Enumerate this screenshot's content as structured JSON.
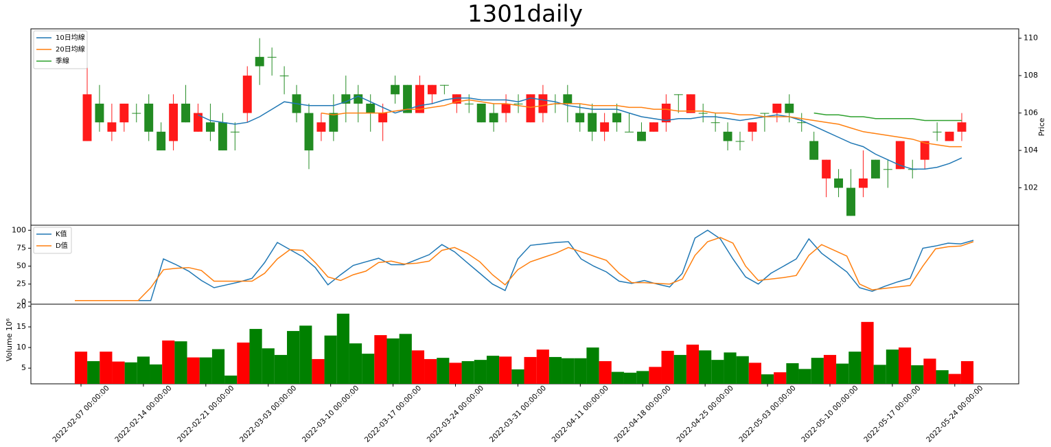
{
  "chart_data": [
    {
      "type": "candlestick",
      "title": "1301daily",
      "ylabel": "Price",
      "open": [
        104.5,
        106.5,
        105,
        105.5,
        106,
        106.5,
        105,
        104.5,
        106.5,
        105,
        105.5,
        105.5,
        105,
        106,
        109,
        109,
        108,
        107,
        106,
        105,
        106,
        107,
        107,
        106.5,
        105.5,
        107.5,
        107.5,
        106,
        107,
        107.5,
        106.5,
        106.5,
        106.5,
        106,
        106,
        106.5,
        105.5,
        106,
        106.5,
        107,
        106,
        106,
        105,
        106,
        105,
        105,
        105,
        105.5,
        107,
        106,
        106,
        105.5,
        105,
        104.5,
        105,
        106,
        106,
        106.5,
        105.5,
        104.5,
        102.5,
        102.5,
        102,
        102,
        103.5,
        103,
        103,
        103,
        103.5,
        105,
        104.5,
        105
      ],
      "high": [
        108.5,
        107.5,
        106.5,
        106.5,
        106.5,
        107,
        105.5,
        107,
        107.5,
        106.5,
        106.5,
        106,
        105.5,
        108.5,
        110,
        109.5,
        108.5,
        107.5,
        106.5,
        106,
        107,
        108,
        107.5,
        107,
        106.5,
        108,
        107.5,
        108,
        107.5,
        107.5,
        107,
        107,
        106.5,
        106.5,
        107,
        107,
        107,
        107.5,
        107,
        107.5,
        106.5,
        106.5,
        106,
        106.5,
        106,
        105.5,
        105.5,
        107,
        107,
        107,
        106.5,
        106,
        105.5,
        105,
        105.5,
        106,
        106.5,
        107,
        106,
        105,
        103.5,
        103,
        103,
        104,
        103.5,
        103.5,
        104.5,
        103.5,
        104.5,
        105.5,
        105,
        106
      ],
      "low": [
        104.5,
        105,
        104.5,
        105,
        105.5,
        104.5,
        104,
        104,
        105.5,
        105,
        104.5,
        104,
        104,
        105.5,
        107.5,
        108,
        107,
        105.5,
        103,
        104.5,
        104.5,
        105.5,
        105.5,
        105,
        104.5,
        106.5,
        106,
        106,
        106.5,
        107,
        106,
        106,
        105.5,
        105,
        105.5,
        106,
        105.5,
        105.5,
        106,
        105.5,
        105,
        104.5,
        104.5,
        105,
        105,
        104.5,
        105,
        105,
        106,
        106,
        105.5,
        105,
        104,
        104,
        104.5,
        105,
        105.5,
        105.5,
        105,
        103.5,
        101.5,
        101.5,
        100.5,
        101.5,
        102.5,
        102,
        103,
        102.5,
        103,
        104.5,
        104.5,
        104.5
      ],
      "close": [
        107,
        105.5,
        105.5,
        106.5,
        106,
        105,
        104,
        106.5,
        105.5,
        106,
        105,
        104,
        105,
        108,
        108.5,
        109,
        108,
        106,
        104,
        105.5,
        105,
        106.5,
        106.5,
        106,
        106,
        107,
        106,
        107.5,
        107.5,
        107.5,
        107,
        106.5,
        105.5,
        105.5,
        106.5,
        106.5,
        107,
        107,
        106.5,
        106.5,
        105.5,
        105,
        105.5,
        105.5,
        105,
        104.5,
        105.5,
        106.5,
        107,
        107,
        106,
        105.5,
        104.5,
        104.5,
        105.5,
        106,
        106.5,
        106,
        105.5,
        103.5,
        103.5,
        102,
        100.5,
        102.5,
        102.5,
        103,
        104.5,
        103,
        104.5,
        105,
        105,
        105.5
      ],
      "up_color": "#ff1a1a",
      "down_color": "#228b22",
      "series": [
        {
          "name": "10日均線",
          "color": "#1f77b4",
          "values": [
            null,
            null,
            null,
            null,
            null,
            null,
            null,
            null,
            null,
            105.9,
            105.6,
            105.5,
            105.4,
            105.5,
            105.8,
            106.2,
            106.6,
            106.5,
            106.4,
            106.4,
            106.4,
            106.6,
            106.9,
            106.6,
            106.3,
            106.0,
            106.2,
            106.4,
            106.5,
            106.7,
            106.8,
            106.8,
            106.7,
            106.7,
            106.7,
            106.6,
            106.8,
            106.7,
            106.6,
            106.4,
            106.3,
            106.2,
            106.2,
            106.2,
            106.0,
            105.8,
            105.7,
            105.6,
            105.7,
            105.7,
            105.8,
            105.8,
            105.7,
            105.6,
            105.7,
            105.8,
            105.9,
            105.8,
            105.6,
            105.3,
            105.0,
            104.7,
            104.4,
            104.2,
            103.8,
            103.5,
            103.2,
            103.0,
            103.0,
            103.1,
            103.3,
            103.6
          ]
        },
        {
          "name": "20日均線",
          "color": "#ff7f0e",
          "values": [
            null,
            null,
            null,
            null,
            null,
            null,
            null,
            null,
            null,
            null,
            null,
            null,
            null,
            null,
            null,
            null,
            null,
            null,
            null,
            106.0,
            105.9,
            106.0,
            106.0,
            106.0,
            106.0,
            106.1,
            106.2,
            106.2,
            106.3,
            106.4,
            106.6,
            106.7,
            106.6,
            106.5,
            106.5,
            106.4,
            106.3,
            106.4,
            106.5,
            106.5,
            106.5,
            106.4,
            106.4,
            106.4,
            106.3,
            106.3,
            106.2,
            106.2,
            106.1,
            106.1,
            106.1,
            106.0,
            106.0,
            105.9,
            105.9,
            105.8,
            105.8,
            105.8,
            105.7,
            105.6,
            105.5,
            105.4,
            105.2,
            105.0,
            104.9,
            104.8,
            104.7,
            104.6,
            104.4,
            104.3,
            104.2,
            104.2
          ]
        },
        {
          "name": "季線",
          "color": "#2ca02c",
          "values": [
            null,
            null,
            null,
            null,
            null,
            null,
            null,
            null,
            null,
            null,
            null,
            null,
            null,
            null,
            null,
            null,
            null,
            null,
            null,
            null,
            null,
            null,
            null,
            null,
            null,
            null,
            null,
            null,
            null,
            null,
            null,
            null,
            null,
            null,
            null,
            null,
            null,
            null,
            null,
            null,
            null,
            null,
            null,
            null,
            null,
            null,
            null,
            null,
            null,
            null,
            null,
            null,
            null,
            null,
            null,
            null,
            null,
            null,
            null,
            106.0,
            105.9,
            105.9,
            105.8,
            105.8,
            105.7,
            105.7,
            105.7,
            105.7,
            105.6,
            105.6,
            105.6,
            105.6
          ]
        }
      ],
      "ylim": [
        100,
        110.5
      ],
      "yticks": [
        102,
        104,
        106,
        108,
        110
      ],
      "legend": "upper left"
    },
    {
      "type": "line",
      "series": [
        {
          "name": "K值",
          "color": "#1f77b4",
          "values": [
            2,
            2,
            2,
            2,
            2,
            2,
            2,
            60,
            52,
            43,
            30,
            20,
            24,
            28,
            33,
            55,
            83,
            73,
            63,
            48,
            24,
            38,
            51,
            56,
            61,
            52,
            52,
            59,
            66,
            80,
            70,
            55,
            40,
            25,
            16,
            60,
            79,
            81,
            83,
            84,
            60,
            50,
            42,
            29,
            26,
            30,
            25,
            21,
            40,
            89,
            100,
            88,
            60,
            35,
            25,
            40,
            50,
            60,
            88,
            68,
            55,
            42,
            20,
            15,
            22,
            28,
            33,
            75,
            78,
            82,
            81,
            86
          ]
        },
        {
          "name": "D值",
          "color": "#ff7f0e",
          "values": [
            2,
            2,
            2,
            2,
            2,
            2,
            20,
            45,
            47,
            48,
            44,
            29,
            29,
            29,
            29,
            40,
            60,
            73,
            72,
            55,
            35,
            30,
            38,
            43,
            55,
            57,
            53,
            54,
            57,
            72,
            76,
            68,
            56,
            38,
            24,
            45,
            56,
            62,
            68,
            76,
            70,
            64,
            58,
            40,
            27,
            27,
            26,
            25,
            32,
            65,
            84,
            90,
            82,
            50,
            30,
            32,
            34,
            37,
            65,
            80,
            72,
            64,
            25,
            17,
            19,
            21,
            23,
            50,
            74,
            77,
            78,
            84
          ]
        }
      ],
      "ylim": [
        -3,
        107
      ],
      "yticks": [
        0,
        25,
        50,
        75,
        100
      ],
      "legend": "upper left"
    },
    {
      "type": "bar",
      "ylabel": "Volume  10⁶",
      "categories": [
        "2022-02-07 00:00:00",
        null,
        null,
        null,
        null,
        "2022-02-14 00:00:00",
        null,
        null,
        null,
        null,
        "2022-02-21 00:00:00",
        null,
        null,
        null,
        null,
        "2022-03-03 00:00:00",
        null,
        null,
        null,
        null,
        "2022-03-10 00:00:00",
        null,
        null,
        null,
        null,
        "2022-03-17 00:00:00",
        null,
        null,
        null,
        null,
        "2022-03-24 00:00:00",
        null,
        null,
        null,
        null,
        "2022-03-31 00:00:00",
        null,
        null,
        null,
        null,
        "2022-04-11 00:00:00",
        null,
        null,
        null,
        null,
        "2022-04-18 00:00:00",
        null,
        null,
        null,
        null,
        "2022-04-25 00:00:00",
        null,
        null,
        null,
        null,
        "2022-05-03 00:00:00",
        null,
        null,
        null,
        null,
        "2022-05-10 00:00:00",
        null,
        null,
        null,
        null,
        "2022-05-17 00:00:00",
        null,
        null,
        null,
        null,
        "2022-05-24 00:00:00",
        null
      ],
      "values": [
        9.0,
        6.7,
        9.0,
        6.6,
        6.4,
        7.8,
        5.9,
        11.7,
        11.5,
        7.6,
        7.6,
        9.6,
        3.2,
        11.2,
        14.5,
        9.8,
        8.2,
        14.0,
        15.3,
        7.2,
        12.9,
        18.2,
        11.0,
        8.5,
        13.0,
        12.2,
        13.3,
        9.3,
        7.2,
        7.5,
        6.3,
        6.7,
        7.0,
        8.0,
        7.8,
        4.7,
        7.7,
        9.5,
        7.7,
        7.4,
        7.4,
        10.0,
        6.7,
        4.1,
        3.9,
        4.3,
        5.3,
        9.2,
        8.2,
        10.7,
        9.3,
        7.0,
        8.8,
        7.9,
        6.3,
        3.5,
        4.0,
        6.2,
        4.8,
        7.5,
        8.2,
        6.1,
        9.0,
        16.2,
        5.8,
        9.5,
        10.0,
        5.7,
        7.3,
        4.5,
        3.6,
        6.7
      ],
      "up_color": "#ff0000",
      "down_color": "#008000",
      "ylim": [
        1.2,
        20.5
      ],
      "yticks": [
        5,
        10,
        15,
        20
      ]
    }
  ]
}
